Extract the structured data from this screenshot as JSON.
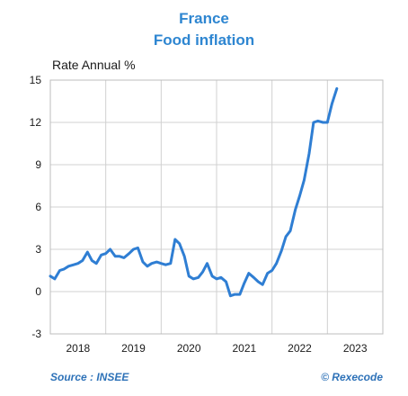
{
  "title": "France",
  "subtitle": "Food inflation",
  "unit_label": "Rate Annual %",
  "source": "Source : INSEE",
  "credit": "© Rexecode",
  "colors": {
    "title": "#2e86d1",
    "line": "#2f7ed3",
    "grid": "#d0d0d0",
    "source": "#2e72b8"
  },
  "chart_data": {
    "type": "line",
    "title": "France Food inflation",
    "ylabel": "Rate Annual %",
    "ylim": [
      -3,
      15
    ],
    "yticks": [
      -3,
      0,
      3,
      6,
      9,
      12,
      15
    ],
    "xlim": [
      2018.0,
      2024.0
    ],
    "xtick_labels": [
      "2018",
      "2019",
      "2020",
      "2021",
      "2022",
      "2023"
    ],
    "grid": true,
    "series": [
      {
        "x": [
          2018.0,
          2018.08,
          2018.17,
          2018.25,
          2018.33,
          2018.42,
          2018.5,
          2018.58,
          2018.67,
          2018.75,
          2018.83,
          2018.92,
          2019.0,
          2019.08,
          2019.17,
          2019.25,
          2019.33,
          2019.42,
          2019.5,
          2019.58,
          2019.67,
          2019.75,
          2019.83,
          2019.92,
          2020.0,
          2020.08,
          2020.17,
          2020.25,
          2020.33,
          2020.42,
          2020.5,
          2020.58,
          2020.67,
          2020.75,
          2020.83,
          2020.92,
          2021.0,
          2021.08,
          2021.17,
          2021.25,
          2021.33,
          2021.42,
          2021.5,
          2021.58,
          2021.67,
          2021.75,
          2021.83,
          2021.92,
          2022.0,
          2022.08,
          2022.17,
          2022.25,
          2022.33,
          2022.42,
          2022.5,
          2022.58,
          2022.67,
          2022.75,
          2022.83,
          2022.92,
          2023.0,
          2023.08,
          2023.17
        ],
        "y": [
          1.1,
          0.9,
          1.5,
          1.6,
          1.8,
          1.9,
          2.0,
          2.2,
          2.8,
          2.2,
          2.0,
          2.6,
          2.7,
          3.0,
          2.5,
          2.5,
          2.4,
          2.7,
          3.0,
          3.1,
          2.1,
          1.8,
          2.0,
          2.1,
          2.0,
          1.9,
          2.0,
          3.7,
          3.4,
          2.5,
          1.1,
          0.9,
          1.0,
          1.4,
          2.0,
          1.1,
          0.9,
          1.0,
          0.7,
          -0.3,
          -0.2,
          -0.2,
          0.6,
          1.3,
          1.0,
          0.7,
          0.5,
          1.3,
          1.5,
          2.0,
          2.9,
          3.9,
          4.3,
          5.8,
          6.8,
          7.9,
          9.8,
          12.0,
          12.1,
          12.0,
          12.0,
          13.3,
          14.4
        ]
      }
    ]
  }
}
